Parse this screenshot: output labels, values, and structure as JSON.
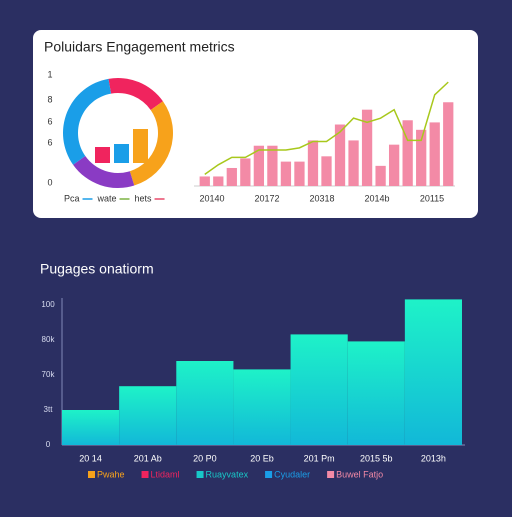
{
  "chart_data": [
    {
      "type": "pie",
      "title": "Poluidars Engagement metrics",
      "axis_labels": [
        "1",
        "8",
        "6",
        "6",
        "0"
      ],
      "categories": [
        "red",
        "orange",
        "purple",
        "blue"
      ],
      "values": [
        18,
        30,
        20,
        32
      ],
      "colors": [
        "#f0245e",
        "#f7a21b",
        "#8a3bc4",
        "#1a9ee8"
      ],
      "inner_bars": {
        "values": [
          16,
          19,
          34
        ],
        "colors": [
          "#f0245e",
          "#1a9ee8",
          "#f7a21b"
        ],
        "ylim": [
          0,
          40
        ]
      },
      "legend": [
        {
          "name": "Pca",
          "color": "#1a9ee8"
        },
        {
          "name": "wate",
          "color": "#7cb342"
        },
        {
          "name": "hets",
          "color": "#e84a6a"
        }
      ]
    },
    {
      "type": "combo",
      "x_labels": [
        "20140",
        "20172",
        "20318",
        "2014b",
        "20115"
      ],
      "ylim": [
        0,
        100
      ],
      "bars": {
        "color": "#f38aa6",
        "values": [
          9,
          9,
          17,
          26,
          38,
          38,
          23,
          23,
          43,
          28,
          58,
          43,
          72,
          19,
          39,
          62,
          53,
          60,
          79
        ]
      },
      "line": {
        "color": "#a8c81c",
        "values": [
          11,
          20,
          27,
          27,
          34,
          34,
          34,
          36,
          42,
          42,
          51,
          64,
          60,
          64,
          72,
          43,
          43,
          86,
          98
        ]
      }
    },
    {
      "type": "bar",
      "title": "Pugages onatiorm",
      "categories": [
        "20 14",
        "201 Ab",
        "20 P0",
        "20 Eb",
        "201 Pm",
        "2015 5b",
        "2013h"
      ],
      "values": [
        25,
        42,
        60,
        54,
        79,
        74,
        104
      ],
      "ylim": [
        0,
        105
      ],
      "yticks": [
        100,
        {
          "value": 75,
          "label": "80k"
        },
        {
          "value": 50,
          "label": "70k"
        },
        {
          "value": 25,
          "label": "3tt"
        },
        0
      ],
      "legend": [
        {
          "name": "Pwahe",
          "color": "#f7a21b"
        },
        {
          "name": "Ltidaml",
          "color": "#f0245e"
        },
        {
          "name": "Ruayvatex",
          "color": "#18c8c8"
        },
        {
          "name": "Cyudaler",
          "color": "#1a9ee8"
        },
        {
          "name": "Buwel Fatjo",
          "color": "#f38aa6"
        }
      ]
    }
  ]
}
